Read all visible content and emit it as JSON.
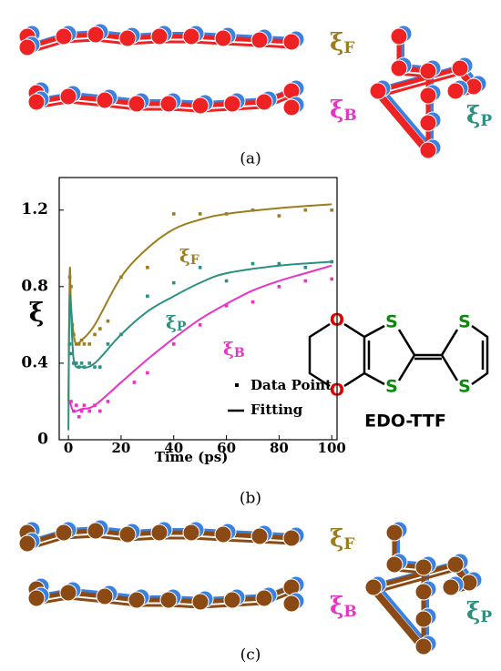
{
  "panel_a": {
    "caption": "(a)",
    "labels": [
      {
        "symbol": "ξ",
        "sub": "F"
      },
      {
        "symbol": "ξ",
        "sub": "B"
      },
      {
        "symbol": "ξ",
        "sub": "P"
      }
    ]
  },
  "chart_data": {
    "type": "scatter",
    "caption": "(b)",
    "xlabel": "Time (ps)",
    "ylabel": "ξ",
    "xlim": [
      -3.5,
      102
    ],
    "ylim": [
      0,
      1.37
    ],
    "xticks": [
      0,
      20,
      40,
      60,
      80,
      100
    ],
    "yticks": [
      0,
      0.4,
      0.8,
      1.2
    ],
    "legend": [
      "Data Point",
      "Fitting"
    ],
    "series": [
      {
        "label": {
          "symbol": "ξ",
          "sub": "F"
        },
        "color": "#9b7d1e",
        "x": [
          0.5,
          1,
          1.5,
          2,
          3,
          4,
          5,
          6,
          8,
          10,
          12,
          15,
          20,
          30,
          40,
          50,
          60,
          70,
          80,
          90,
          100
        ],
        "values": [
          0.85,
          0.8,
          0.6,
          0.55,
          0.5,
          0.5,
          0.52,
          0.5,
          0.5,
          0.55,
          0.58,
          0.62,
          0.85,
          0.9,
          1.18,
          1.18,
          1.18,
          1.2,
          1.17,
          1.2,
          1.2
        ],
        "fit_x": [
          0,
          0.5,
          1,
          2,
          3,
          5,
          10,
          20,
          30,
          40,
          50,
          60,
          80,
          100
        ],
        "fit_values": [
          0.2,
          0.88,
          0.7,
          0.55,
          0.5,
          0.52,
          0.6,
          0.85,
          1.0,
          1.1,
          1.15,
          1.18,
          1.21,
          1.23
        ]
      },
      {
        "label": {
          "symbol": "ξ",
          "sub": "P"
        },
        "color": "#2a9080",
        "x": [
          0.5,
          1,
          2,
          3,
          4,
          5,
          6,
          8,
          10,
          12,
          15,
          20,
          30,
          40,
          50,
          60,
          70,
          80,
          90,
          100
        ],
        "values": [
          0.5,
          0.45,
          0.4,
          0.4,
          0.38,
          0.4,
          0.38,
          0.4,
          0.38,
          0.38,
          0.5,
          0.55,
          0.75,
          0.82,
          0.9,
          0.83,
          0.92,
          0.92,
          0.9,
          0.93
        ],
        "fit_x": [
          0,
          0.5,
          2,
          5,
          10,
          20,
          30,
          40,
          50,
          60,
          80,
          100
        ],
        "fit_values": [
          0.05,
          0.75,
          0.42,
          0.38,
          0.4,
          0.55,
          0.67,
          0.75,
          0.82,
          0.87,
          0.91,
          0.93
        ]
      },
      {
        "label": {
          "symbol": "ξ",
          "sub": "B"
        },
        "color": "#e832c8",
        "x": [
          1,
          2,
          3,
          4,
          5,
          6,
          8,
          10,
          12,
          15,
          25,
          30,
          40,
          50,
          60,
          70,
          80,
          90,
          100
        ],
        "values": [
          0.2,
          0.15,
          0.18,
          0.12,
          0.15,
          0.18,
          0.15,
          0.18,
          0.15,
          0.2,
          0.3,
          0.35,
          0.5,
          0.6,
          0.7,
          0.72,
          0.8,
          0.83,
          0.84
        ],
        "fit_x": [
          0.5,
          2,
          5,
          10,
          20,
          30,
          40,
          50,
          60,
          70,
          80,
          90,
          100
        ],
        "fit_values": [
          0.2,
          0.15,
          0.16,
          0.18,
          0.3,
          0.42,
          0.53,
          0.63,
          0.71,
          0.78,
          0.83,
          0.87,
          0.91
        ]
      }
    ]
  },
  "molecule": {
    "atoms": [
      "O",
      "O",
      "S",
      "S",
      "S",
      "S"
    ],
    "name": "EDO-TTF"
  },
  "panel_c": {
    "caption": "(c)",
    "labels": [
      {
        "symbol": "ξ",
        "sub": "F"
      },
      {
        "symbol": "ξ",
        "sub": "B"
      },
      {
        "symbol": "ξ",
        "sub": "P"
      }
    ]
  }
}
